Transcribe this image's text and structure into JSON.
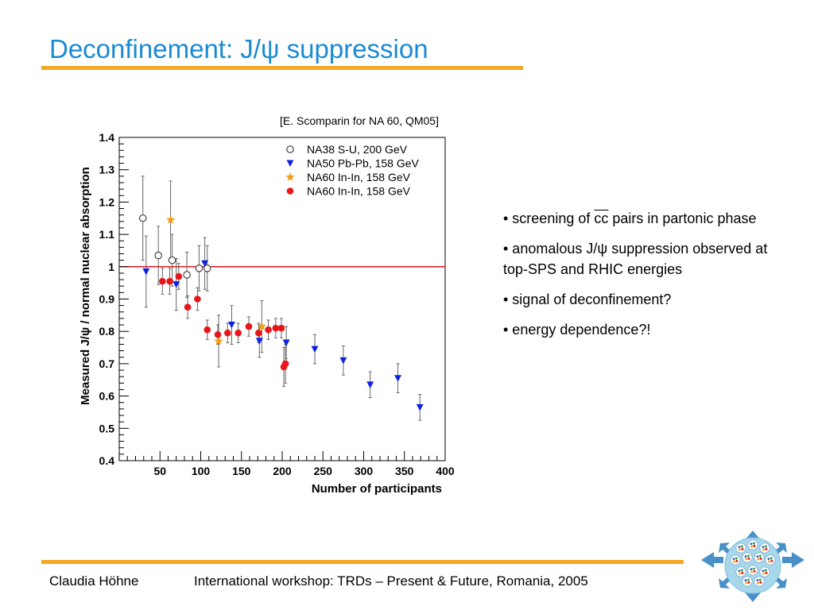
{
  "slide": {
    "title": "Deconfinement: J/ψ suppression",
    "citation": "[E. Scomparin for NA 60, QM05]",
    "bullets": [
      {
        "pre": "• screening of ",
        "overline": "cc",
        "post": " pairs in partonic phase"
      },
      {
        "pre": "• anomalous J/ψ suppression observed  at top-SPS and RHIC energies",
        "overline": "",
        "post": ""
      },
      {
        "pre": "• signal of deconfinement?",
        "overline": "",
        "post": ""
      },
      {
        "pre": "• energy dependence?!",
        "overline": "",
        "post": ""
      }
    ]
  },
  "footer": {
    "author": "Claudia Höhne",
    "event": "International workshop: TRDs – Present & Future, Romania, 2005"
  },
  "colors": {
    "title": "#1a8ad4",
    "accent_rule": "#f5a623",
    "reference_line": "#e8161b",
    "na38": "#444444",
    "na50": "#1020e0",
    "na60_star": "#f39c12",
    "na60_circle": "#e8161b",
    "error_bar": "#666666"
  },
  "chart_data": {
    "type": "scatter",
    "xlabel": "Number of participants",
    "ylabel": "Measured J/ψ / normal nuclear absorption",
    "xlim": [
      0,
      400
    ],
    "ylim": [
      0.4,
      1.4
    ],
    "xticks": [
      50,
      100,
      150,
      200,
      250,
      300,
      350,
      400
    ],
    "yticks": [
      0.4,
      0.5,
      0.6,
      0.7,
      0.8,
      0.9,
      1,
      1.1,
      1.2,
      1.3,
      1.4
    ],
    "ytick_labels": [
      "0.4",
      "0.5",
      "0.6",
      "0.7",
      "0.8",
      "0.9",
      "1",
      "1.1",
      "1.2",
      "1.3",
      "1.4"
    ],
    "reference_line_y": 1.0,
    "grid": false,
    "legend_position": "top-right",
    "series": [
      {
        "name": "NA38 S-U, 200 GeV",
        "marker": "open-circle",
        "points": [
          {
            "x": 29,
            "y": 1.15,
            "err": 0.13
          },
          {
            "x": 48,
            "y": 1.035,
            "err": 0.09
          },
          {
            "x": 65,
            "y": 1.02,
            "err": 0.08
          },
          {
            "x": 83,
            "y": 0.975,
            "err": 0.07
          },
          {
            "x": 98,
            "y": 0.995,
            "err": 0.07
          },
          {
            "x": 108,
            "y": 0.995,
            "err": 0.07
          }
        ]
      },
      {
        "name": "NA50 Pb-Pb, 158 GeV",
        "marker": "triangle-down",
        "points": [
          {
            "x": 33,
            "y": 0.985,
            "err": 0.11
          },
          {
            "x": 70,
            "y": 0.945,
            "err": 0.08
          },
          {
            "x": 105,
            "y": 1.01,
            "err": 0.08
          },
          {
            "x": 138,
            "y": 0.82,
            "err": 0.06
          },
          {
            "x": 172,
            "y": 0.77,
            "err": 0.05
          },
          {
            "x": 205,
            "y": 0.765,
            "err": 0.05
          },
          {
            "x": 240,
            "y": 0.745,
            "err": 0.045
          },
          {
            "x": 275,
            "y": 0.71,
            "err": 0.045
          },
          {
            "x": 308,
            "y": 0.635,
            "err": 0.04
          },
          {
            "x": 342,
            "y": 0.655,
            "err": 0.045
          },
          {
            "x": 369,
            "y": 0.565,
            "err": 0.04
          }
        ]
      },
      {
        "name": "NA60 In-In, 158 GeV",
        "marker": "star",
        "points": [
          {
            "x": 63,
            "y": 1.145,
            "err": 0.12
          },
          {
            "x": 122,
            "y": 0.77,
            "err": 0.08
          },
          {
            "x": 175,
            "y": 0.815,
            "err": 0.08
          }
        ]
      },
      {
        "name": "NA60 In-In, 158 GeV",
        "marker": "filled-circle",
        "points": [
          {
            "x": 53,
            "y": 0.955,
            "err": 0.04
          },
          {
            "x": 62,
            "y": 0.955,
            "err": 0.04
          },
          {
            "x": 73,
            "y": 0.97,
            "err": 0.04
          },
          {
            "x": 84,
            "y": 0.875,
            "err": 0.035
          },
          {
            "x": 96,
            "y": 0.9,
            "err": 0.035
          },
          {
            "x": 108,
            "y": 0.805,
            "err": 0.03
          },
          {
            "x": 121,
            "y": 0.79,
            "err": 0.03
          },
          {
            "x": 133,
            "y": 0.795,
            "err": 0.03
          },
          {
            "x": 146,
            "y": 0.795,
            "err": 0.03
          },
          {
            "x": 159,
            "y": 0.815,
            "err": 0.03
          },
          {
            "x": 171,
            "y": 0.795,
            "err": 0.03
          },
          {
            "x": 183,
            "y": 0.805,
            "err": 0.03
          },
          {
            "x": 192,
            "y": 0.81,
            "err": 0.03
          },
          {
            "x": 199,
            "y": 0.81,
            "err": 0.03
          },
          {
            "x": 202,
            "y": 0.69,
            "err": 0.06
          },
          {
            "x": 204,
            "y": 0.7,
            "err": 0.06
          }
        ]
      }
    ]
  }
}
